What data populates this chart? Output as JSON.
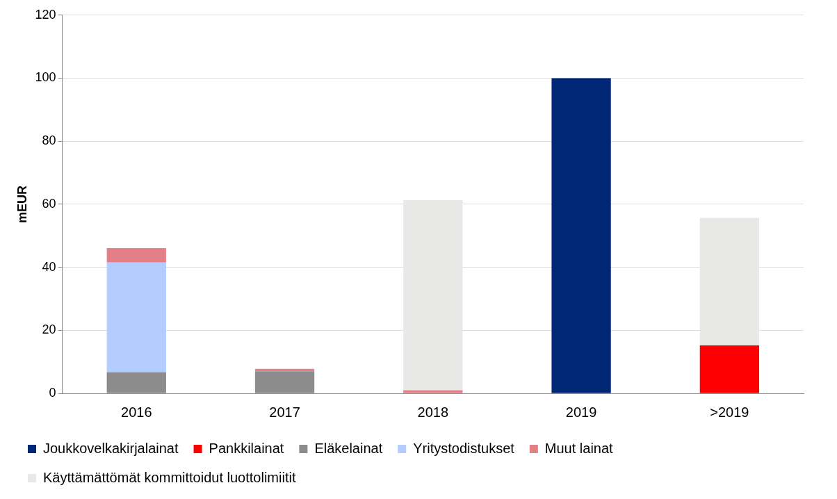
{
  "chart_data": {
    "type": "bar",
    "stacked": true,
    "ylabel": "mEUR",
    "categories": [
      "2016",
      "2017",
      "2018",
      "2019",
      ">2019"
    ],
    "series": [
      {
        "name": "Joukkovelkakirjalainat",
        "color": "#002776",
        "values": [
          0,
          0,
          0,
          100,
          0
        ]
      },
      {
        "name": "Pankkilainat",
        "color": "#ff0000",
        "values": [
          0,
          0,
          0,
          0,
          15.2
        ]
      },
      {
        "name": "Eläkelainat",
        "color": "#8c8c8c",
        "values": [
          6.7,
          7,
          0,
          0,
          0
        ]
      },
      {
        "name": "Yritystodistukset",
        "color": "#b3cdff",
        "values": [
          34.8,
          0,
          0,
          0,
          0
        ]
      },
      {
        "name": "Muut lainat",
        "color": "#e37f87",
        "values": [
          4.6,
          0.8,
          1,
          0,
          0
        ]
      },
      {
        "name": "Käyttämättömät kommittoidut luottolimiitit",
        "color": "#e8e8e6",
        "values": [
          0,
          0,
          60.3,
          0,
          40.5
        ]
      }
    ],
    "ylim": [
      0,
      120
    ],
    "yticks": [
      0,
      20,
      40,
      60,
      80,
      100,
      120
    ],
    "grid": "y",
    "legend": "bottom"
  }
}
